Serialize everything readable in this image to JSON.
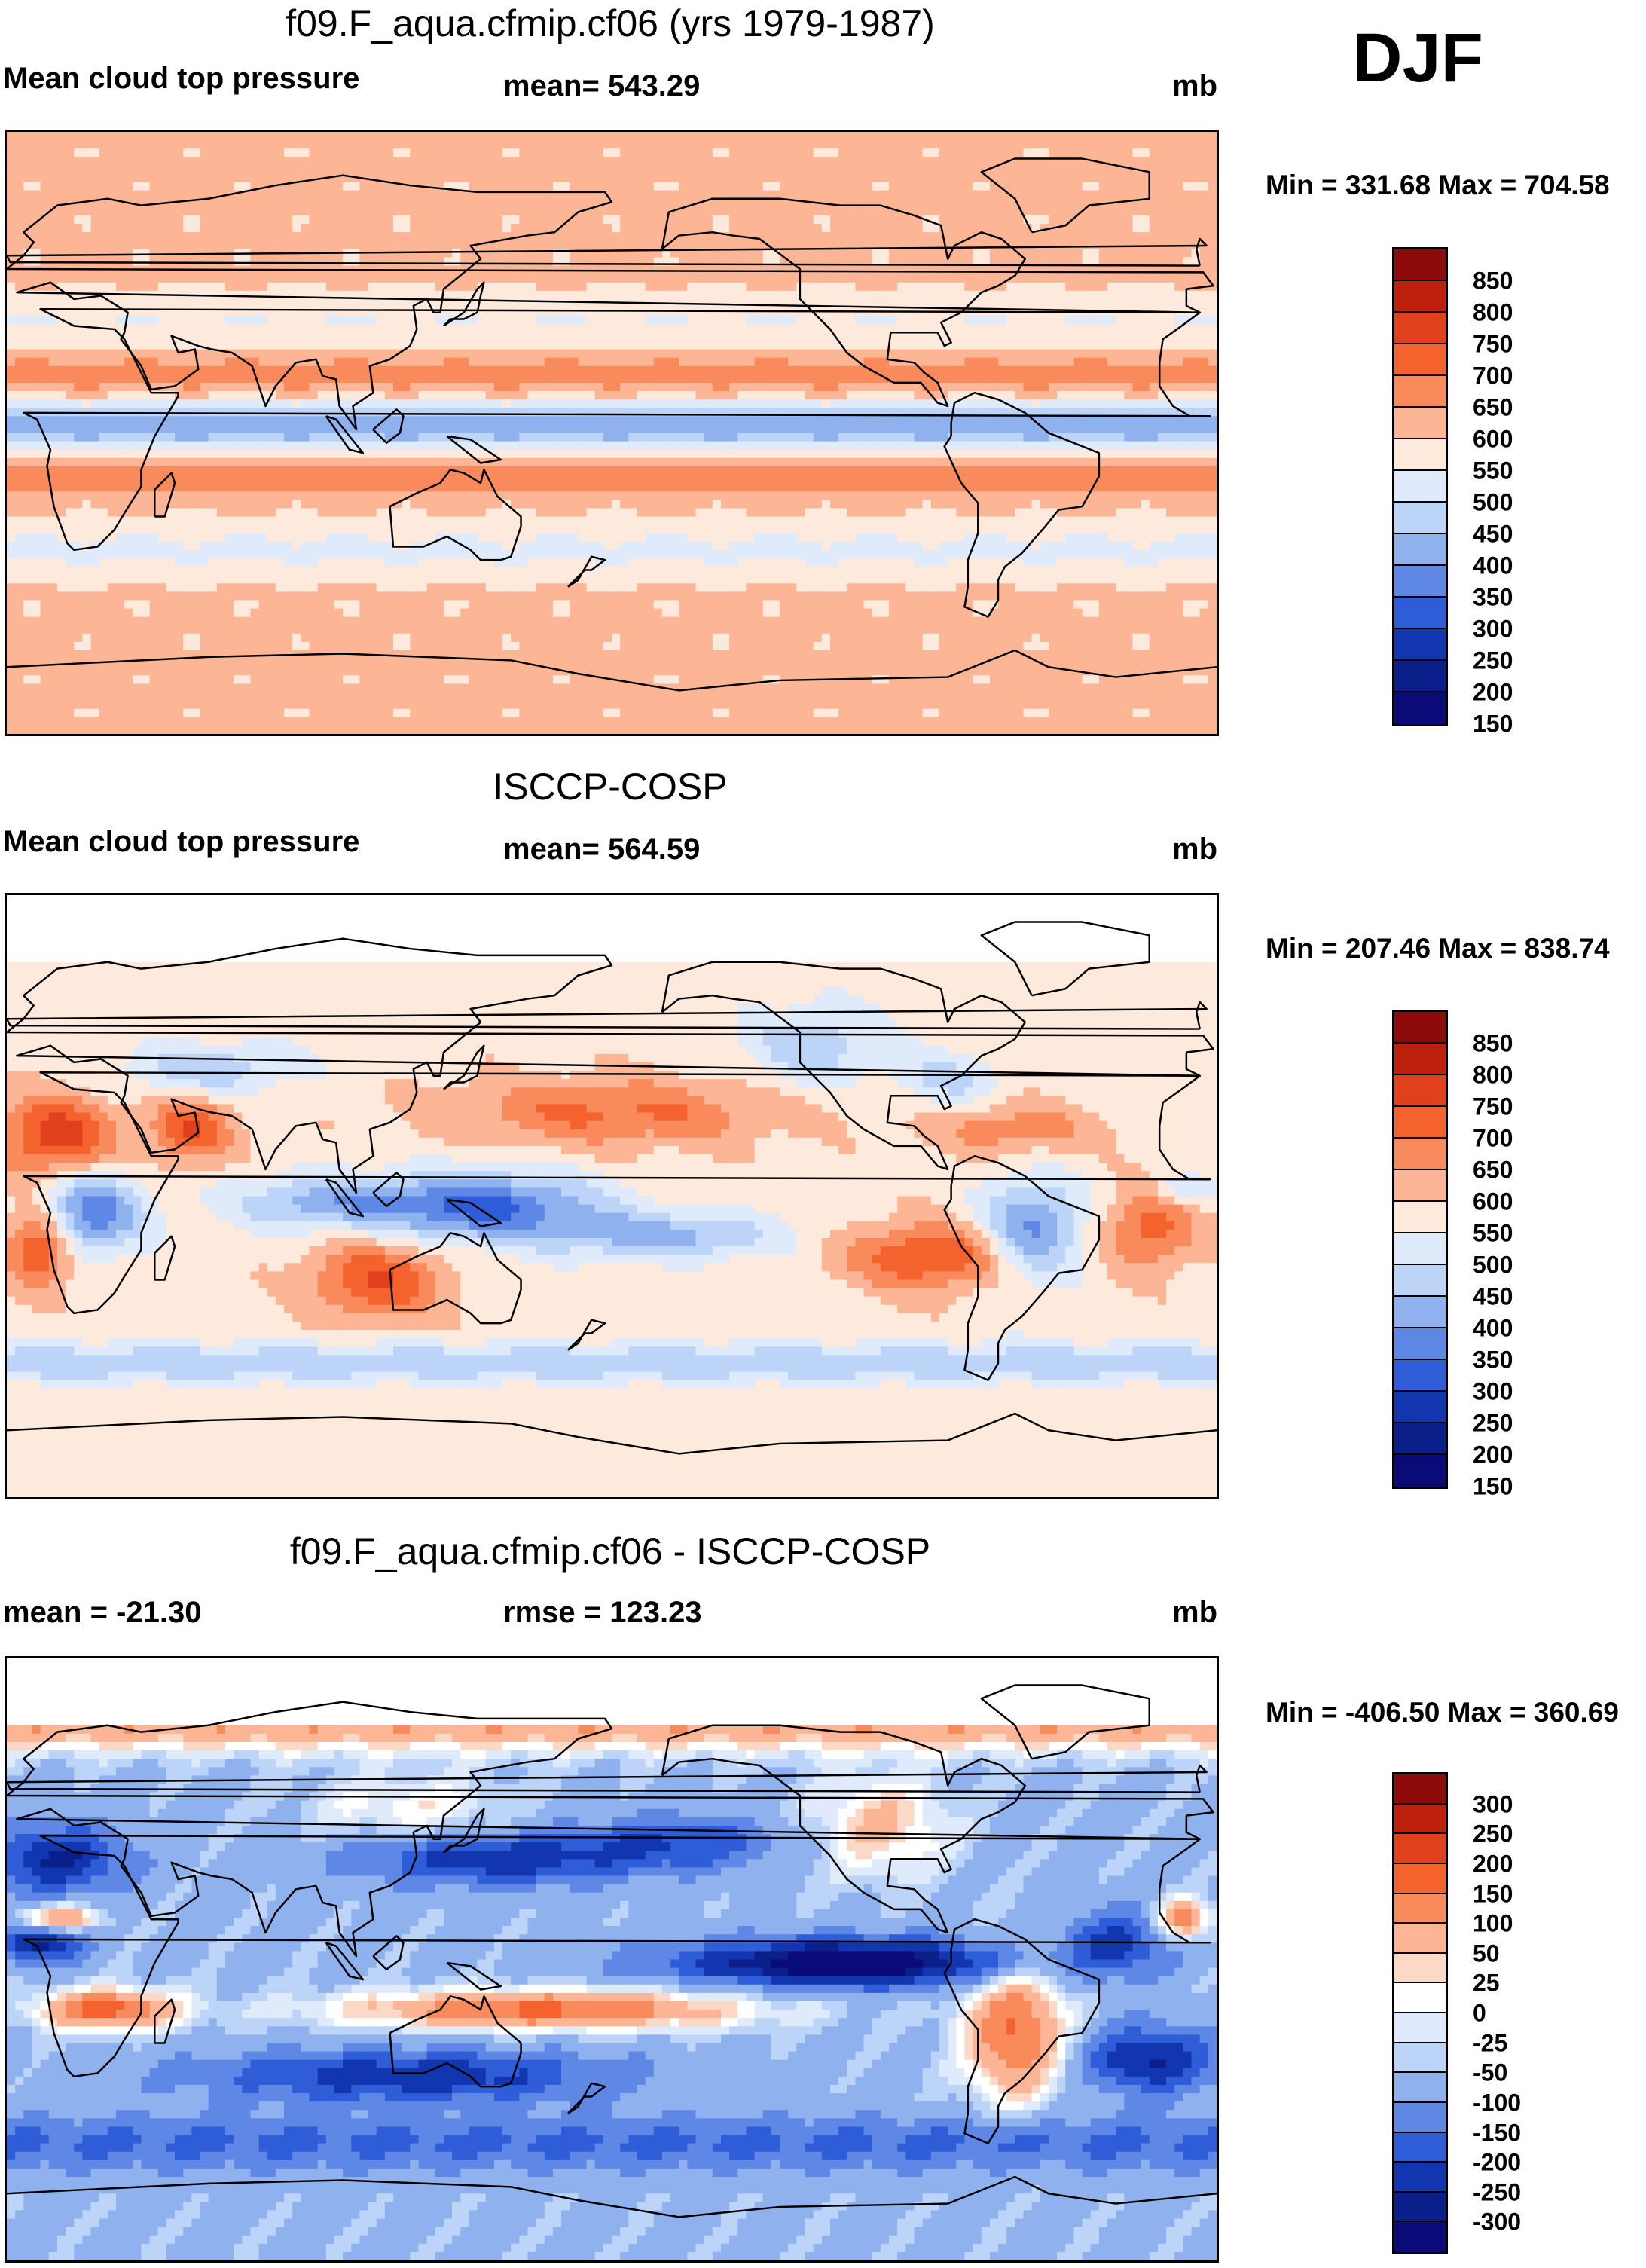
{
  "season": "DJF",
  "palettes": {
    "abs": [
      "#8e0b0b",
      "#be1f0c",
      "#e0411c",
      "#f4622e",
      "#f88a5c",
      "#fcb595",
      "#feeadc",
      "#dfeafb",
      "#bcd4f7",
      "#8fb2ef",
      "#5f88e6",
      "#2f5dd8",
      "#1236b0",
      "#0a1f8a",
      "#0a0a78"
    ],
    "diff": [
      "#8e0b0b",
      "#be1f0c",
      "#e0411c",
      "#f4622e",
      "#f88a5c",
      "#fcb595",
      "#fcd8c6",
      "#ffffff",
      "#dfeafb",
      "#bcd4f7",
      "#8fb2ef",
      "#5f88e6",
      "#2f5dd8",
      "#1236b0",
      "#0a1f8a",
      "#0a0a78"
    ]
  },
  "panels": [
    {
      "title": "f09.F_aqua.cfmip.cf06 (yrs 1979-1987)",
      "left_label": "Mean cloud top pressure",
      "center_label": "mean= 543.29",
      "units": "mb",
      "minmax": "Min = 331.68 Max = 704.58",
      "colorbar_labels": [
        "850",
        "800",
        "750",
        "700",
        "650",
        "600",
        "550",
        "500",
        "450",
        "400",
        "350",
        "300",
        "250",
        "200",
        "150"
      ],
      "palette": "abs",
      "field": "model"
    },
    {
      "title": "ISCCP-COSP",
      "left_label": "Mean cloud top pressure",
      "center_label": "mean= 564.59",
      "units": "mb",
      "minmax": "Min = 207.46 Max = 838.74",
      "colorbar_labels": [
        "850",
        "800",
        "750",
        "700",
        "650",
        "600",
        "550",
        "500",
        "450",
        "400",
        "350",
        "300",
        "250",
        "200",
        "150"
      ],
      "palette": "abs",
      "field": "obs"
    },
    {
      "title": "f09.F_aqua.cfmip.cf06 - ISCCP-COSP",
      "left_label": "mean = -21.30",
      "center_label": "rmse = 123.23",
      "units": "mb",
      "minmax": "Min = -406.50 Max = 360.69",
      "colorbar_labels": [
        "300",
        "250",
        "200",
        "150",
        "100",
        "50",
        "25",
        "0",
        "-25",
        "-50",
        "-100",
        "-150",
        "-200",
        "-250",
        "-300"
      ],
      "palette": "diff",
      "field": "diff"
    }
  ]
}
